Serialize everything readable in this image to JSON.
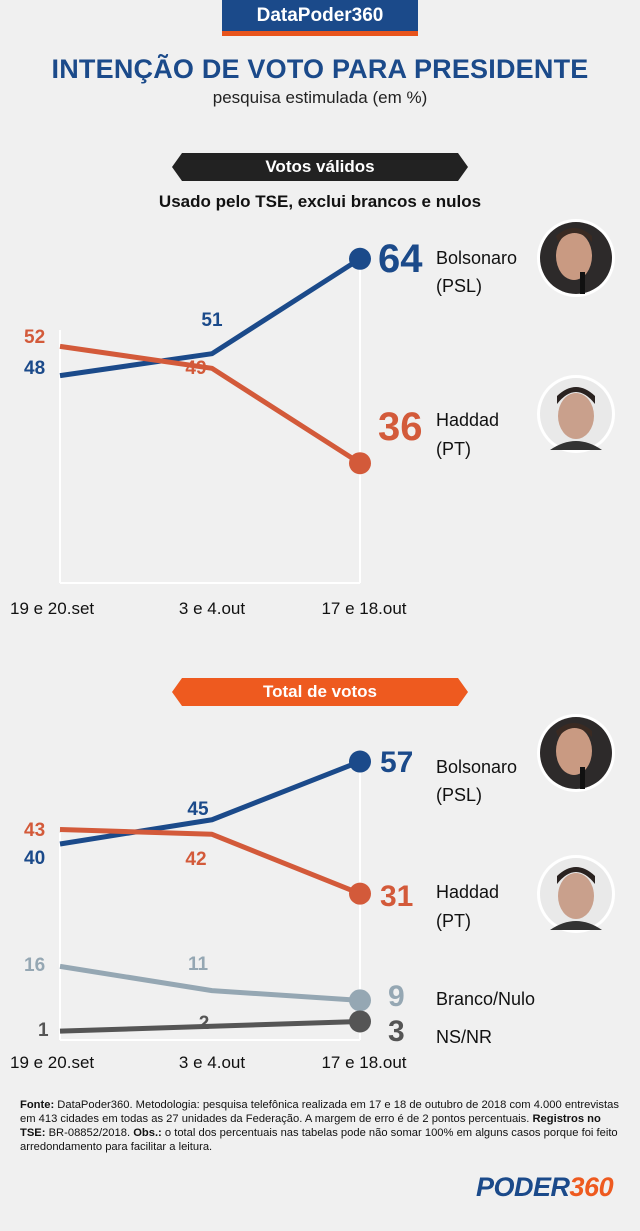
{
  "header": {
    "brand": "DataPoder360",
    "title": "INTENÇÃO DE VOTO PARA PRESIDENTE",
    "subtitle": "pesquisa estimulada (em %)"
  },
  "section1": {
    "banner": "Votos válidos",
    "note": "Usado pelo TSE, exclui brancos e nulos"
  },
  "section2": {
    "banner": "Total de votos"
  },
  "candidates": {
    "bolsonaro": {
      "name": "Bolsonaro",
      "party": "(PSL)",
      "photo": "bolsonaro-photo"
    },
    "haddad": {
      "name": "Haddad",
      "party": "(PT)",
      "photo": "haddad-photo"
    },
    "branco": {
      "name": "Branco/Nulo"
    },
    "nsnr": {
      "name": "NS/NR"
    }
  },
  "colors": {
    "bolsonaro": "#1b4a8a",
    "haddad": "#d35a3a",
    "branco": "#95a7b3",
    "nsnr": "#555555",
    "brand_blue": "#1b4a8a",
    "brand_orange": "#ee5a1f"
  },
  "chart_data": [
    {
      "type": "line",
      "title": "Votos válidos",
      "subtitle": "Usado pelo TSE, exclui brancos e nulos",
      "x": [
        "19 e 20.set",
        "3 e 4.out",
        "17 e 18.out"
      ],
      "series": [
        {
          "name": "Bolsonaro (PSL)",
          "values": [
            48,
            51,
            64
          ]
        },
        {
          "name": "Haddad (PT)",
          "values": [
            52,
            49,
            36
          ]
        }
      ]
    },
    {
      "type": "line",
      "title": "Total de votos",
      "x": [
        "19 e 20.set",
        "3 e 4.out",
        "17 e 18.out"
      ],
      "series": [
        {
          "name": "Bolsonaro (PSL)",
          "values": [
            40,
            45,
            57
          ]
        },
        {
          "name": "Haddad (PT)",
          "values": [
            43,
            42,
            31
          ]
        },
        {
          "name": "Branco/Nulo",
          "values": [
            16,
            11,
            9
          ]
        },
        {
          "name": "NS/NR",
          "values": [
            1,
            2,
            3
          ]
        }
      ]
    }
  ],
  "footer": {
    "fonte_label": "Fonte:",
    "fonte_text": "DataPoder360. Metodologia: pesquisa telefônica realizada em 17 e 18 de outubro de 2018 com 4.000 entrevistas em 413 cidades em todas as 27 unidades da Federação. A margem de erro é de 2 pontos percentuais.",
    "registros_label": "Registros no TSE:",
    "registros_text": "BR-08852/2018.",
    "obs_label": "Obs.:",
    "obs_text": "o total dos percentuais nas tabelas pode não somar 100% em alguns casos porque foi feito arredondamento para facilitar a leitura."
  },
  "logo": {
    "part1": "PODER",
    "part2": "360"
  }
}
